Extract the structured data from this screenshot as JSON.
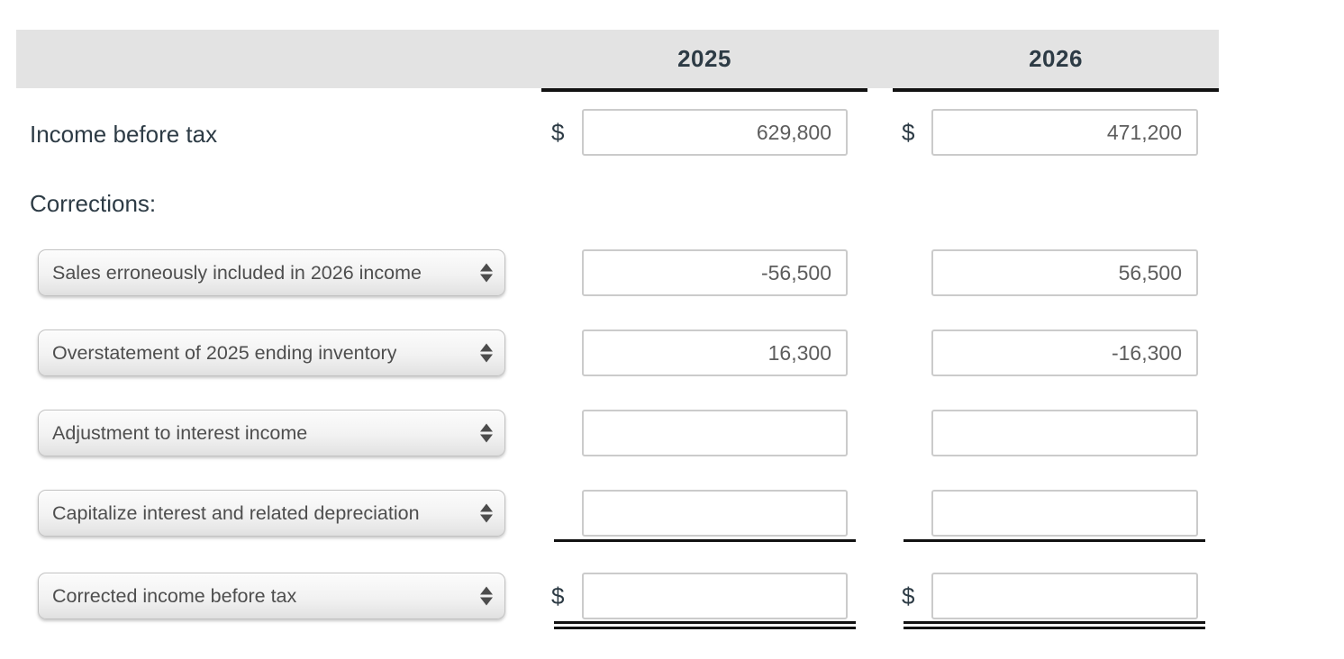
{
  "header": {
    "col_2025": "2025",
    "col_2026": "2026"
  },
  "income_row": {
    "label": "Income before tax",
    "currency_symbol": "$",
    "value_2025": "629,800",
    "value_2026": "471,200"
  },
  "corrections_heading": "Corrections:",
  "corrections": [
    {
      "select_label": "Sales erroneously included in 2026 income",
      "value_2025": "-56,500",
      "value_2026": "56,500"
    },
    {
      "select_label": "Overstatement of 2025 ending inventory",
      "value_2025": "16,300",
      "value_2026": "-16,300"
    },
    {
      "select_label": "Adjustment to interest income",
      "value_2025": "",
      "value_2026": ""
    },
    {
      "select_label": "Capitalize interest and related depreciation",
      "value_2025": "",
      "value_2026": ""
    }
  ],
  "total_row": {
    "select_label": "Corrected income before tax",
    "currency_symbol": "$",
    "value_2025": "",
    "value_2026": ""
  },
  "icons": {
    "select_spinner": "up-down-triangles"
  },
  "colors": {
    "header_bg": "#e3e3e3",
    "dark_text": "#2d3b45",
    "input_text": "#5d5d5d",
    "rule_line": "#121212",
    "select_text": "#4e4e4e"
  }
}
